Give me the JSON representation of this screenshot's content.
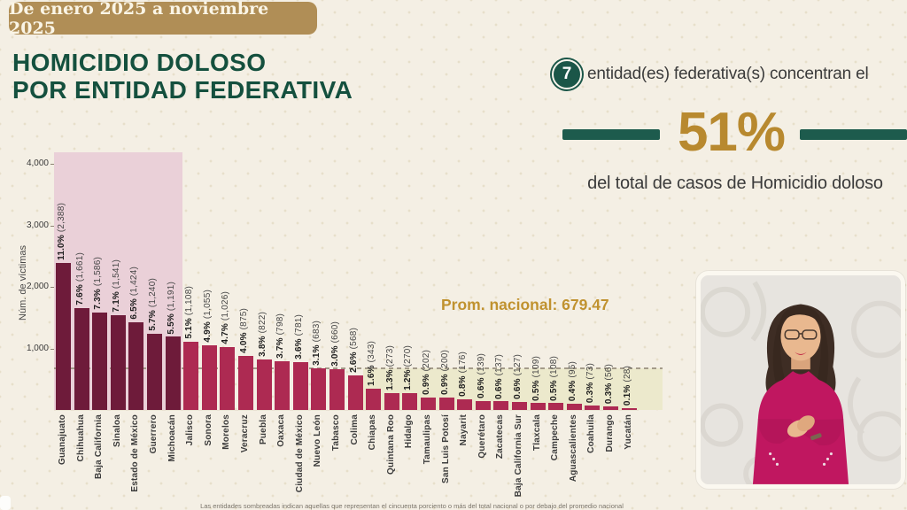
{
  "period_banner": "De enero 2025 a noviembre 2025",
  "title": {
    "line1": "HOMICIDIO DOLOSO",
    "line2": "POR ENTIDAD FEDERATIVA"
  },
  "highlight": {
    "count": "7",
    "lead": "entidad(es) federativa(s) concentran el",
    "percent": "51%",
    "sub": "del total de casos de Homicidio doloso"
  },
  "footnote": "Las entidades sombreadas indican aquellas que representan el cincuenta porciento o más del total nacional o por debajo del promedio nacional",
  "colors": {
    "accent_gold": "#b8892f",
    "deep_green": "#14503e",
    "teal_accent": "#1d5b4d",
    "banner_tan": "#b08e56",
    "bar_dark": "#6e1b3a",
    "bar_light": "#ad2a52",
    "pink_region": "#ead0d8",
    "yellow_region": "#ece9cc",
    "avg_gold": "#c0922f"
  },
  "chart_data": {
    "type": "bar",
    "title": "Homicidio doloso por entidad federativa, enero 2025 a noviembre 2025",
    "ylabel": "Núm. de víctimas",
    "xlabel": "",
    "ylim": [
      0,
      4000
    ],
    "yticks": [
      1000,
      2000,
      3000,
      4000
    ],
    "grid": false,
    "national_average": 679.47,
    "national_average_label": "Prom. nacional: 679.47",
    "shaded_top_entities": 7,
    "categories": [
      "Guanajuato",
      "Chihuahua",
      "Baja California",
      "Sinaloa",
      "Estado de México",
      "Guerrero",
      "Michoacán",
      "Jalisco",
      "Sonora",
      "Morelos",
      "Veracruz",
      "Puebla",
      "Oaxaca",
      "Ciudad de México",
      "Nuevo León",
      "Tabasco",
      "Colima",
      "Chiapas",
      "Quintana Roo",
      "Hidalgo",
      "Tamaulipas",
      "San Luis Potosí",
      "Nayarit",
      "Querétaro",
      "Zacatecas",
      "Baja California Sur",
      "Tlaxcala",
      "Campeche",
      "Aguascalientes",
      "Coahuila",
      "Durango",
      "Yucatán"
    ],
    "values": [
      2388,
      1661,
      1586,
      1541,
      1424,
      1240,
      1191,
      1108,
      1055,
      1026,
      875,
      822,
      798,
      781,
      683,
      660,
      568,
      343,
      273,
      270,
      202,
      200,
      176,
      139,
      137,
      127,
      109,
      108,
      95,
      73,
      56,
      28
    ],
    "percent_labels": [
      "11.0",
      "7.6",
      "7.3",
      "7.1",
      "6.5",
      "5.7",
      "5.5",
      "5.1",
      "4.9",
      "4.7",
      "4.0",
      "3.8",
      "3.7",
      "3.6",
      "3.1",
      "3.0",
      "2.6",
      "1.6",
      "1.3",
      "1.2",
      "0.9",
      "0.9",
      "0.8",
      "0.6",
      "0.6",
      "0.6",
      "0.5",
      "0.5",
      "0.4",
      "0.3",
      "0.3",
      "0.1"
    ]
  }
}
